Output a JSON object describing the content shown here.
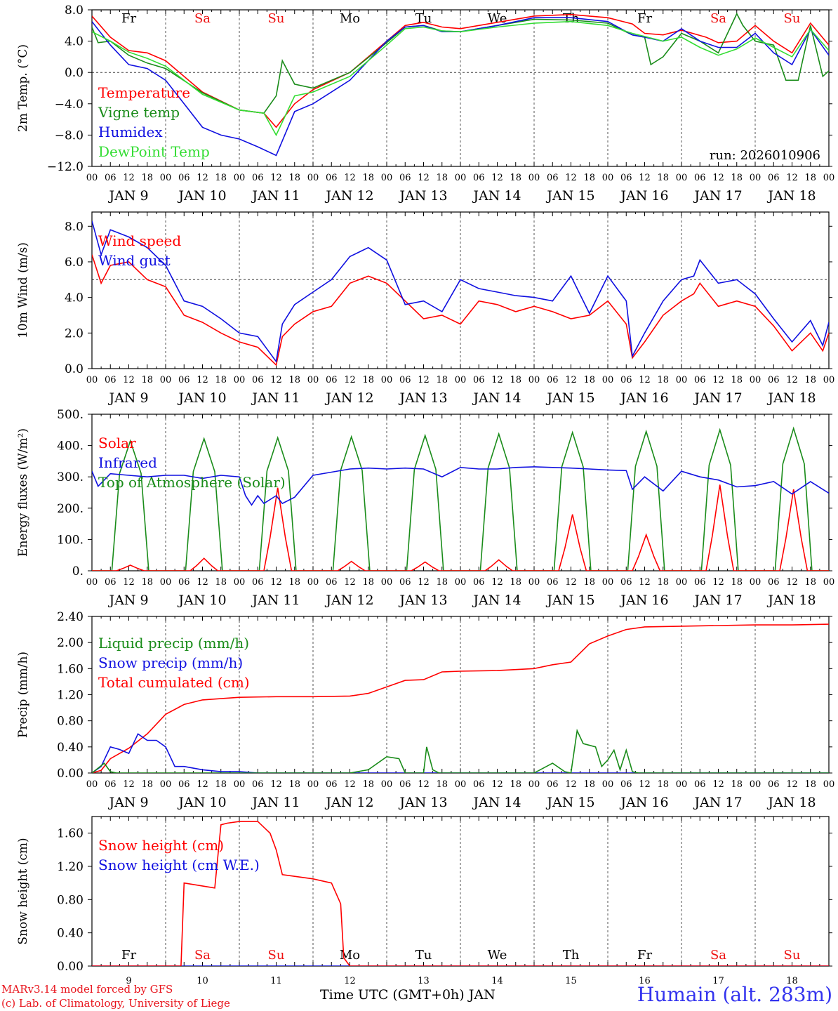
{
  "colors": {
    "red": "#ff0000",
    "green": "#1a8c1a",
    "blue": "#1010e0",
    "lightgreen": "#33dd33",
    "axis": "#000000",
    "weekend": "#ee1111"
  },
  "days": [
    "Fr",
    "Sa",
    "Su",
    "Mo",
    "Tu",
    "We",
    "Th",
    "Fr",
    "Sa",
    "Su"
  ],
  "weekend_flags": [
    false,
    true,
    true,
    false,
    false,
    false,
    false,
    false,
    true,
    true
  ],
  "date_labels": [
    "JAN  9",
    "JAN 10",
    "JAN 11",
    "JAN 12",
    "JAN 13",
    "JAN 14",
    "JAN 15",
    "JAN 16",
    "JAN 17",
    "JAN 18"
  ],
  "day_numbers": [
    "9",
    "10",
    "11",
    "12",
    "13",
    "14",
    "15",
    "16",
    "17",
    "18"
  ],
  "hour_ticks": [
    "00",
    "06",
    "12",
    "18"
  ],
  "last_tick": "00",
  "run_label": "run: 2026010906",
  "footer": {
    "line1": "MARv3.14 model forced by GFS",
    "line2": "(c) Lab. of Climatology, University of Liege",
    "xaxis_title": "Time UTC (GMT+0h) JAN",
    "station": "Humain (alt. 283m)"
  },
  "chart_data": [
    {
      "type": "line",
      "panel": "temperature",
      "ylabel": "2m Temp. (°C)",
      "ylim": [
        -12,
        8
      ],
      "yticks": [
        "8.0",
        "4.0",
        "0.0",
        "−4.0",
        "−8.0",
        "−12.0"
      ],
      "ytick_values": [
        8,
        4,
        0,
        -4,
        -8,
        -12
      ],
      "xlim": [
        0,
        240
      ],
      "hline": 0,
      "series": [
        {
          "name": "Temperature",
          "color": "red",
          "t": [
            0,
            6,
            12,
            18,
            24,
            36,
            48,
            56,
            60,
            66,
            72,
            84,
            96,
            102,
            108,
            114,
            120,
            132,
            144,
            156,
            168,
            176,
            180,
            186,
            192,
            200,
            204,
            210,
            216,
            222,
            228,
            234,
            240
          ],
          "v": [
            7.2,
            4.5,
            2.8,
            2.5,
            1.5,
            -2.5,
            -4.8,
            -5.2,
            -7,
            -4,
            -2.2,
            0,
            4,
            6,
            6.4,
            5.8,
            5.6,
            6.4,
            7.2,
            7.4,
            7,
            6.2,
            5,
            4.8,
            5.4,
            4.5,
            3.8,
            4,
            6,
            4,
            2.5,
            6.3,
            3.5
          ]
        },
        {
          "name": "Vigne temp",
          "color": "green",
          "t": [
            0,
            2,
            6,
            12,
            18,
            24,
            36,
            48,
            56,
            60,
            62,
            66,
            72,
            84,
            96,
            102,
            108,
            114,
            120,
            132,
            144,
            156,
            168,
            176,
            180,
            182,
            186,
            192,
            198,
            204,
            210,
            212,
            216,
            222,
            226,
            230,
            234,
            238,
            240
          ],
          "v": [
            5.8,
            3.8,
            4,
            2.2,
            1.2,
            0.5,
            -2.6,
            -4.8,
            -5.2,
            -3,
            1.5,
            -1.5,
            -2,
            0,
            3.8,
            5.8,
            6,
            5.3,
            5.2,
            6,
            6.8,
            6.7,
            6.3,
            4.8,
            4.5,
            1,
            2,
            5,
            4,
            2.5,
            7.5,
            6,
            4,
            3.5,
            -1,
            -1,
            6,
            -0.5,
            0.2
          ]
        },
        {
          "name": "Humidex",
          "color": "blue",
          "t": [
            0,
            6,
            12,
            18,
            24,
            30,
            36,
            42,
            48,
            54,
            60,
            66,
            72,
            84,
            96,
            102,
            108,
            114,
            120,
            132,
            144,
            156,
            168,
            176,
            180,
            186,
            192,
            198,
            204,
            210,
            216,
            222,
            228,
            234,
            240
          ],
          "v": [
            6.5,
            3.5,
            1,
            0.5,
            -1,
            -4,
            -7,
            -8,
            -8.5,
            -9.5,
            -10.6,
            -5,
            -4,
            -1,
            4,
            5.8,
            6,
            5.2,
            5.2,
            6,
            7,
            7,
            6.5,
            4.8,
            4.5,
            4,
            5.6,
            4,
            3.2,
            3.2,
            5,
            2.5,
            1,
            5.5,
            2.2
          ]
        },
        {
          "name": "DewPoint Temp",
          "color": "lightgreen",
          "t": [
            0,
            6,
            12,
            18,
            24,
            36,
            48,
            56,
            60,
            66,
            72,
            84,
            96,
            102,
            108,
            114,
            120,
            132,
            144,
            156,
            168,
            176,
            180,
            186,
            192,
            198,
            204,
            210,
            216,
            222,
            228,
            234,
            240
          ],
          "v": [
            5.2,
            4,
            2.6,
            1.8,
            0.8,
            -2.8,
            -4.8,
            -5.2,
            -8,
            -3,
            -2.5,
            -0.5,
            3.5,
            5.6,
            5.8,
            5.3,
            5.2,
            5.8,
            6.3,
            6.5,
            6,
            5,
            4.6,
            4,
            4.5,
            3.2,
            2.2,
            3,
            4.4,
            3.2,
            2,
            5.5,
            2.8
          ]
        }
      ],
      "legend": [
        "Temperature",
        "Vigne temp",
        "Humidex",
        "DewPoint Temp"
      ],
      "legend_position": "bottom-left"
    },
    {
      "type": "line",
      "panel": "wind",
      "ylabel": "10m Wind (m/s)",
      "ylim": [
        0,
        8.8
      ],
      "yticks": [
        "8.0",
        "6.0",
        "4.0",
        "2.0",
        "0.0"
      ],
      "ytick_values": [
        8,
        6,
        4,
        2,
        0
      ],
      "xlim": [
        0,
        240
      ],
      "hline": 5,
      "series": [
        {
          "name": "Wind speed",
          "color": "red",
          "t": [
            0,
            3,
            6,
            12,
            18,
            24,
            30,
            36,
            42,
            48,
            54,
            60,
            62,
            66,
            72,
            78,
            84,
            90,
            96,
            102,
            108,
            114,
            120,
            126,
            132,
            138,
            144,
            150,
            156,
            162,
            168,
            174,
            176,
            180,
            186,
            192,
            196,
            198,
            204,
            210,
            216,
            222,
            228,
            234,
            238,
            240
          ],
          "v": [
            6.4,
            4.8,
            5.8,
            6,
            5,
            4.6,
            3,
            2.6,
            2,
            1.5,
            1.2,
            0.2,
            1.8,
            2.5,
            3.2,
            3.5,
            4.8,
            5.2,
            4.8,
            3.8,
            2.8,
            3,
            2.5,
            3.8,
            3.6,
            3.2,
            3.5,
            3.2,
            2.8,
            3,
            3.8,
            2.5,
            0.6,
            1.5,
            3,
            3.8,
            4.2,
            4.8,
            3.5,
            3.8,
            3.5,
            2.4,
            1,
            2,
            1,
            2
          ]
        },
        {
          "name": "Wind gust",
          "color": "blue",
          "t": [
            0,
            3,
            6,
            12,
            18,
            24,
            30,
            36,
            42,
            48,
            54,
            60,
            62,
            66,
            72,
            78,
            84,
            90,
            96,
            102,
            108,
            114,
            120,
            126,
            132,
            138,
            144,
            150,
            156,
            162,
            168,
            174,
            176,
            180,
            186,
            192,
            196,
            198,
            204,
            210,
            216,
            222,
            228,
            234,
            238,
            240
          ],
          "v": [
            8.3,
            6.4,
            7.8,
            7.4,
            6.8,
            5.8,
            3.8,
            3.5,
            2.8,
            2,
            1.8,
            0.4,
            2.5,
            3.6,
            4.3,
            5,
            6.3,
            6.8,
            6.1,
            3.6,
            3.8,
            3.2,
            5,
            4.5,
            4.3,
            4.1,
            4,
            3.8,
            5.2,
            3.1,
            5.2,
            3.8,
            0.7,
            2,
            3.8,
            5,
            5.2,
            6.1,
            4.8,
            5,
            4.2,
            2.8,
            1.5,
            2.7,
            1.3,
            2.6
          ]
        }
      ],
      "legend": [
        "Wind speed",
        "Wind gust"
      ],
      "legend_position": "top-left"
    },
    {
      "type": "line",
      "panel": "energy",
      "ylabel": "Energy fluxes (W/m²)",
      "ylim": [
        0,
        500
      ],
      "yticks": [
        "500.",
        "400.",
        "300.",
        "200.",
        "100.",
        "0."
      ],
      "ytick_values": [
        500,
        400,
        300,
        200,
        100,
        0
      ],
      "xlim": [
        0,
        240
      ],
      "toa_peaks": [
        415,
        422,
        425,
        428,
        432,
        437,
        442,
        445,
        450,
        455
      ],
      "solar_peaks": [
        18,
        40,
        265,
        30,
        28,
        35,
        180,
        115,
        275,
        260
      ],
      "series": [
        {
          "name": "Infrared",
          "color": "blue",
          "t": [
            0,
            2,
            6,
            12,
            18,
            24,
            30,
            36,
            42,
            48,
            50,
            52,
            54,
            56,
            60,
            62,
            66,
            72,
            78,
            84,
            90,
            96,
            102,
            108,
            114,
            120,
            126,
            132,
            138,
            144,
            150,
            156,
            162,
            168,
            174,
            176,
            180,
            186,
            192,
            198,
            204,
            210,
            216,
            222,
            228,
            234,
            240
          ],
          "v": [
            318,
            270,
            310,
            305,
            300,
            305,
            305,
            295,
            305,
            300,
            240,
            210,
            240,
            215,
            240,
            215,
            235,
            305,
            315,
            325,
            328,
            325,
            328,
            325,
            300,
            330,
            325,
            325,
            330,
            332,
            330,
            328,
            325,
            322,
            320,
            260,
            300,
            255,
            318,
            300,
            290,
            268,
            272,
            285,
            245,
            285,
            248
          ]
        }
      ],
      "legend": [
        "Solar",
        "Infrared",
        "Top of Atmosphere (Solar)"
      ],
      "legend_position": "top-left"
    },
    {
      "type": "line",
      "panel": "precip",
      "ylabel": "Precip (mm/h)",
      "ylim": [
        0,
        2.4
      ],
      "yticks": [
        "2.40",
        "2.00",
        "1.60",
        "1.20",
        "0.80",
        "0.40",
        "0.00"
      ],
      "ytick_values": [
        2.4,
        2,
        1.6,
        1.2,
        0.8,
        0.4,
        0
      ],
      "xlim": [
        0,
        240
      ],
      "series": [
        {
          "name": "Total cumulated (cm)",
          "color": "red",
          "t": [
            0,
            3,
            6,
            12,
            18,
            24,
            30,
            36,
            48,
            60,
            72,
            84,
            90,
            96,
            102,
            108,
            114,
            120,
            132,
            144,
            150,
            156,
            162,
            168,
            174,
            180,
            192,
            204,
            216,
            228,
            240
          ],
          "v": [
            0,
            0.04,
            0.22,
            0.38,
            0.6,
            0.9,
            1.05,
            1.12,
            1.16,
            1.17,
            1.17,
            1.18,
            1.22,
            1.32,
            1.42,
            1.43,
            1.55,
            1.56,
            1.57,
            1.6,
            1.66,
            1.7,
            1.98,
            2.1,
            2.2,
            2.24,
            2.25,
            2.26,
            2.27,
            2.27,
            2.28
          ]
        },
        {
          "name": "Snow precip (mm/h)",
          "color": "blue",
          "t": [
            0,
            3,
            6,
            9,
            12,
            15,
            18,
            21,
            24,
            27,
            30,
            36,
            42,
            48,
            54,
            60,
            72,
            240
          ],
          "v": [
            0,
            0.1,
            0.4,
            0.36,
            0.3,
            0.6,
            0.5,
            0.5,
            0.4,
            0.1,
            0.1,
            0.05,
            0.02,
            0.02,
            0,
            0,
            0,
            0
          ]
        },
        {
          "name": "Liquid precip (mm/h)",
          "color": "green",
          "t": [
            0,
            4,
            6,
            8,
            84,
            90,
            96,
            100,
            102,
            105,
            108,
            109,
            111,
            113,
            116,
            144,
            150,
            154,
            156,
            158,
            160,
            164,
            166,
            168,
            170,
            172,
            174,
            176,
            178,
            180,
            240
          ],
          "v": [
            0,
            0.15,
            0.02,
            0,
            0,
            0.05,
            0.25,
            0.22,
            0,
            0,
            0,
            0.4,
            0.05,
            0,
            0,
            0,
            0.15,
            0.02,
            0,
            0.65,
            0.45,
            0.4,
            0.1,
            0.2,
            0.35,
            0.05,
            0.35,
            0.02,
            0,
            0,
            0
          ]
        }
      ],
      "legend": [
        "Liquid precip (mm/h)",
        "Snow precip (mm/h)",
        "Total cumulated (cm)"
      ],
      "legend_position": "top-left"
    },
    {
      "type": "line",
      "panel": "snow",
      "ylabel": "Snow height (cm)",
      "ylim": [
        0,
        1.8
      ],
      "yticks": [
        "1.60",
        "1.20",
        "0.80",
        "0.40",
        "0.00"
      ],
      "ytick_values": [
        1.6,
        1.2,
        0.8,
        0.4,
        0
      ],
      "xlim": [
        0,
        240
      ],
      "series": [
        {
          "name": "Snow height (cm W.E.)",
          "color": "blue",
          "t": [
            0,
            240
          ],
          "v": [
            0,
            0
          ]
        },
        {
          "name": "Snow height (cm)",
          "color": "red",
          "t": [
            0,
            29,
            30,
            40,
            42,
            44,
            48,
            54,
            58,
            60,
            62,
            66,
            72,
            78,
            81,
            82,
            84,
            240
          ],
          "v": [
            0,
            0,
            1,
            0.94,
            1.7,
            1.72,
            1.74,
            1.74,
            1.6,
            1.4,
            1.1,
            1.08,
            1.05,
            1.0,
            0.75,
            0.1,
            0,
            0
          ]
        }
      ],
      "legend": [
        "Snow height (cm)",
        "Snow height (cm W.E.)"
      ],
      "legend_position": "top-left"
    }
  ]
}
